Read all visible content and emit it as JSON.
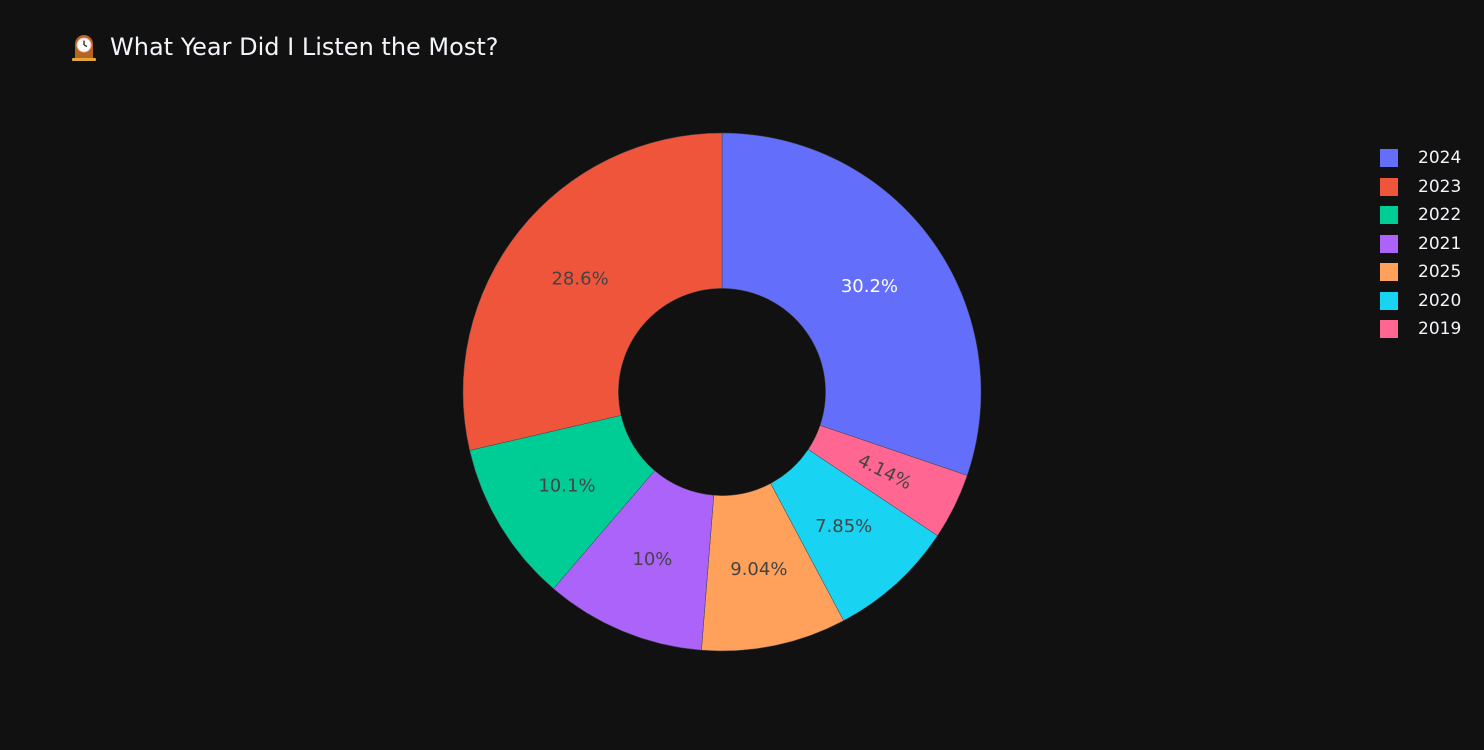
{
  "title": "What Year Did I Listen the Most?",
  "title_icon": "mantel-clock-icon",
  "chart_data": {
    "type": "pie",
    "hole": 0.4,
    "start": "12 o'clock",
    "direction": "clockwise",
    "slices": [
      {
        "label": "2024",
        "value": 30.2,
        "text": "30.2%",
        "color": "#636efa",
        "text_color": "#ffffff"
      },
      {
        "label": "2019",
        "value": 4.14,
        "text": "4.14%",
        "color": "#ff6692",
        "text_color": "#444444"
      },
      {
        "label": "2020",
        "value": 7.85,
        "text": "7.85%",
        "color": "#19d3f3",
        "text_color": "#444444"
      },
      {
        "label": "2025",
        "value": 9.04,
        "text": "9.04%",
        "color": "#ffa15a",
        "text_color": "#444444"
      },
      {
        "label": "2021",
        "value": 10.0,
        "text": "10%",
        "color": "#ab63fa",
        "text_color": "#444444"
      },
      {
        "label": "2022",
        "value": 10.1,
        "text": "10.1%",
        "color": "#00cc96",
        "text_color": "#444444"
      },
      {
        "label": "2023",
        "value": 28.6,
        "text": "28.6%",
        "color": "#ef553b",
        "text_color": "#444444"
      }
    ],
    "legend": {
      "placement": "right",
      "items": [
        {
          "label": "2024",
          "color": "#636efa"
        },
        {
          "label": "2023",
          "color": "#ef553b"
        },
        {
          "label": "2022",
          "color": "#00cc96"
        },
        {
          "label": "2021",
          "color": "#ab63fa"
        },
        {
          "label": "2025",
          "color": "#ffa15a"
        },
        {
          "label": "2020",
          "color": "#19d3f3"
        },
        {
          "label": "2019",
          "color": "#ff6692"
        }
      ]
    }
  }
}
